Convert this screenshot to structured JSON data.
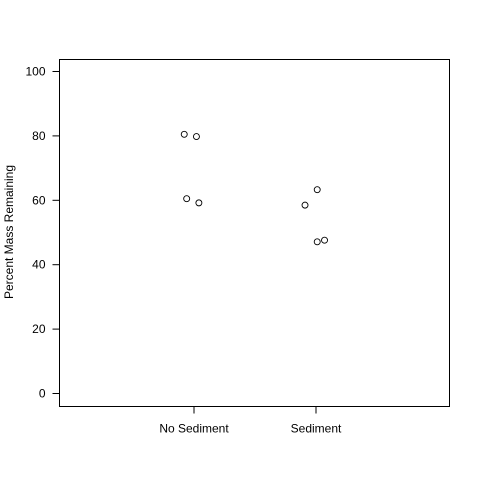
{
  "chart_data": {
    "type": "scatter",
    "title": "",
    "xlabel": "",
    "ylabel": "Percent Mass Remaining",
    "categories": [
      "No Sediment",
      "Sediment"
    ],
    "ylim": [
      0,
      100
    ],
    "yticks": [
      0,
      20,
      40,
      60,
      80,
      100
    ],
    "grid": false,
    "legend": "none",
    "marker": "open-circle",
    "points": [
      {
        "category": "No Sediment",
        "jitter": -0.08,
        "y": 80.5
      },
      {
        "category": "No Sediment",
        "jitter": 0.02,
        "y": 79.8
      },
      {
        "category": "No Sediment",
        "jitter": -0.06,
        "y": 60.5
      },
      {
        "category": "No Sediment",
        "jitter": 0.04,
        "y": 59.2
      },
      {
        "category": "Sediment",
        "jitter": 0.01,
        "y": 63.3
      },
      {
        "category": "Sediment",
        "jitter": -0.09,
        "y": 58.5
      },
      {
        "category": "Sediment",
        "jitter": 0.01,
        "y": 47.1
      },
      {
        "category": "Sediment",
        "jitter": 0.07,
        "y": 47.6
      }
    ]
  }
}
